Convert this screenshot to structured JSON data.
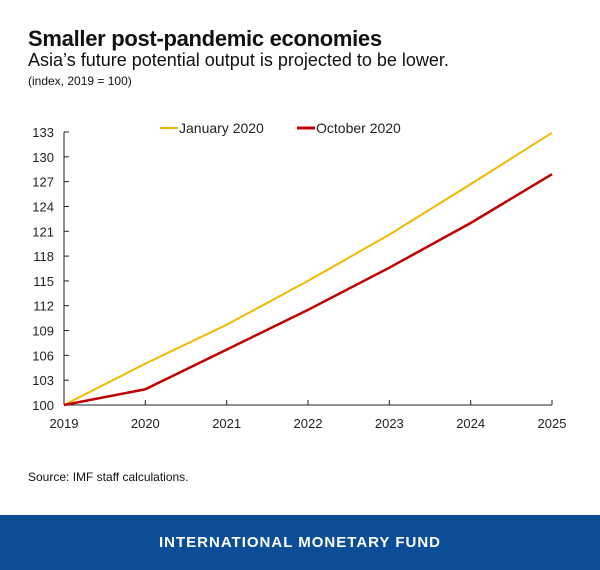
{
  "header": {
    "title": "Smaller post-pandemic economies",
    "subtitle": "Asia’s future potential output is projected to be lower.",
    "units": "(index, 2019 = 100)"
  },
  "chart_data": {
    "type": "line",
    "x": [
      "2019",
      "2020",
      "2021",
      "2022",
      "2023",
      "2024",
      "2025"
    ],
    "series": [
      {
        "name": "January 2020",
        "color": "#f5b800",
        "values": [
          100,
          105.0,
          109.7,
          115.0,
          120.6,
          126.7,
          132.9
        ]
      },
      {
        "name": "October 2020",
        "color": "#c00000",
        "values": [
          100,
          101.9,
          106.7,
          111.5,
          116.6,
          122.0,
          127.9
        ]
      }
    ],
    "ylim": [
      100,
      133
    ],
    "yticks": [
      "100",
      "103",
      "106",
      "109",
      "112",
      "115",
      "118",
      "121",
      "124",
      "127",
      "130",
      "133"
    ],
    "legend": "top",
    "grid": false
  },
  "source": "Source: IMF staff calculations.",
  "footer": "INTERNATIONAL MONETARY FUND"
}
